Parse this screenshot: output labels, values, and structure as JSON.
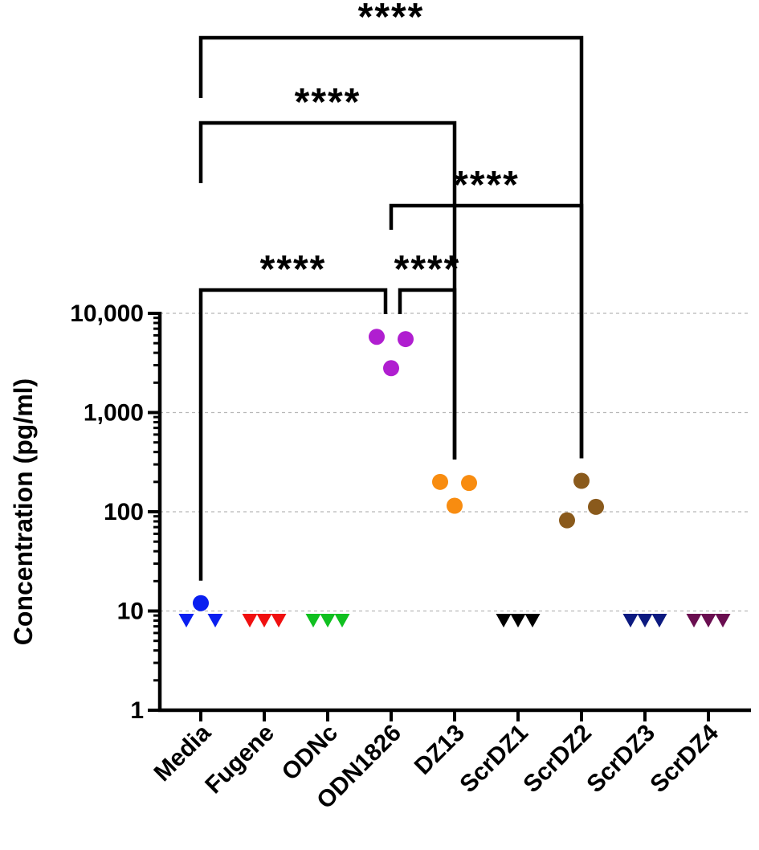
{
  "chart_data": {
    "type": "scatter",
    "title": "",
    "xlabel": "",
    "ylabel": "Concentration (pg/ml)",
    "yscale": "log",
    "ylim": [
      1,
      10000
    ],
    "grid": true,
    "categories": [
      "Media",
      "Fugene",
      "ODNc",
      "ODN1826",
      "DZ13",
      "ScrDZ1",
      "ScrDZ2",
      "ScrDZ3",
      "ScrDZ4"
    ],
    "y_ticks": [
      {
        "value": 1,
        "label": "1"
      },
      {
        "value": 10,
        "label": "10"
      },
      {
        "value": 100,
        "label": "100"
      },
      {
        "value": 1000,
        "label": "1,000"
      },
      {
        "value": 10000,
        "label": "10,000"
      }
    ],
    "series": [
      {
        "name": "Media",
        "color": "#0a1ff0",
        "points": [
          {
            "marker": "circle",
            "value": 12,
            "offset": 0
          },
          {
            "marker": "triangle-down",
            "value": 8,
            "offset": -1
          },
          {
            "marker": "triangle-down",
            "value": 8,
            "offset": 1
          }
        ]
      },
      {
        "name": "Fugene",
        "color": "#f01010",
        "points": [
          {
            "marker": "triangle-down",
            "value": 8,
            "offset": -1
          },
          {
            "marker": "triangle-down",
            "value": 8,
            "offset": 0
          },
          {
            "marker": "triangle-down",
            "value": 8,
            "offset": 1
          }
        ]
      },
      {
        "name": "ODNc",
        "color": "#10c020",
        "points": [
          {
            "marker": "triangle-down",
            "value": 8,
            "offset": -1
          },
          {
            "marker": "triangle-down",
            "value": 8,
            "offset": 0
          },
          {
            "marker": "triangle-down",
            "value": 8,
            "offset": 1
          }
        ]
      },
      {
        "name": "ODN1826",
        "color": "#b01ed0",
        "points": [
          {
            "marker": "circle",
            "value": 5800,
            "offset": -1
          },
          {
            "marker": "circle",
            "value": 5500,
            "offset": 1
          },
          {
            "marker": "circle",
            "value": 2800,
            "offset": 0
          }
        ]
      },
      {
        "name": "DZ13",
        "color": "#f88c10",
        "points": [
          {
            "marker": "circle",
            "value": 200,
            "offset": -1
          },
          {
            "marker": "circle",
            "value": 195,
            "offset": 1
          },
          {
            "marker": "circle",
            "value": 115,
            "offset": 0
          }
        ]
      },
      {
        "name": "ScrDZ1",
        "color": "#000000",
        "points": [
          {
            "marker": "triangle-down",
            "value": 8,
            "offset": -1
          },
          {
            "marker": "triangle-down",
            "value": 8,
            "offset": 0
          },
          {
            "marker": "triangle-down",
            "value": 8,
            "offset": 1
          }
        ]
      },
      {
        "name": "ScrDZ2",
        "color": "#8a5a1c",
        "points": [
          {
            "marker": "circle",
            "value": 205,
            "offset": 0
          },
          {
            "marker": "circle",
            "value": 112,
            "offset": 1
          },
          {
            "marker": "circle",
            "value": 82,
            "offset": -1
          }
        ]
      },
      {
        "name": "ScrDZ3",
        "color": "#0c1a80",
        "points": [
          {
            "marker": "triangle-down",
            "value": 8,
            "offset": -1
          },
          {
            "marker": "triangle-down",
            "value": 8,
            "offset": 0
          },
          {
            "marker": "triangle-down",
            "value": 8,
            "offset": 1
          }
        ]
      },
      {
        "name": "ScrDZ4",
        "color": "#6a0e50",
        "points": [
          {
            "marker": "triangle-down",
            "value": 8,
            "offset": -1
          },
          {
            "marker": "triangle-down",
            "value": 8,
            "offset": 0
          },
          {
            "marker": "triangle-down",
            "value": 8,
            "offset": 1
          }
        ]
      }
    ],
    "comparisons": [
      {
        "from": "Media",
        "to": "ScrDZ2",
        "label": "****"
      },
      {
        "from": "Media",
        "to": "DZ13",
        "label": "****"
      },
      {
        "from": "ODN1826",
        "to": "ScrDZ2",
        "label": "****"
      },
      {
        "from": "Media",
        "to": "ODN1826",
        "label": "****"
      },
      {
        "from": "ODN1826",
        "to": "DZ13",
        "label": "****"
      }
    ]
  }
}
